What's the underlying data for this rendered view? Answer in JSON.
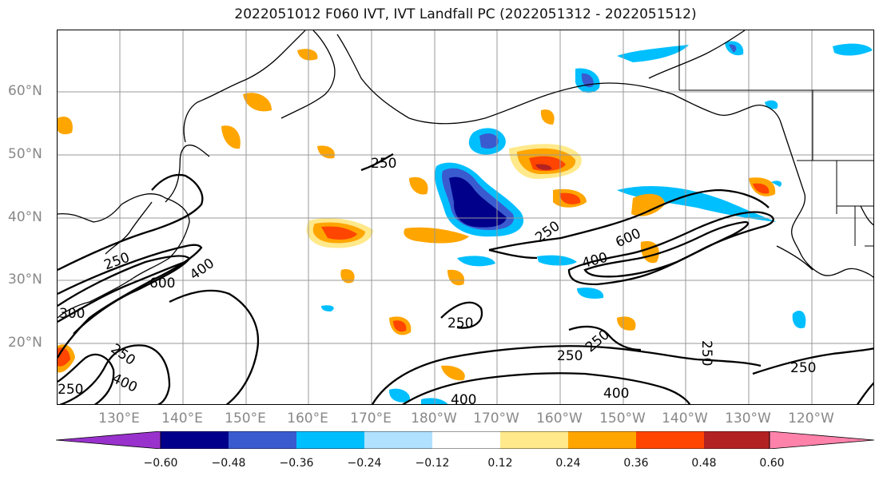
{
  "title": "2022051012 F060 IVT, IVT Landfall PC (2022051312 - 2022051512)",
  "lat_labels": [
    "60°N",
    "50°N",
    "40°N",
    "30°N",
    "20°N"
  ],
  "lon_labels": [
    "130°E",
    "140°E",
    "150°E",
    "160°E",
    "170°E",
    "180°W",
    "170°W",
    "160°W",
    "150°W",
    "140°W",
    "130°W",
    "120°W"
  ],
  "contour_labels": [
    "250",
    "250",
    "250",
    "400",
    "600",
    "250",
    "400",
    "600",
    "250",
    "250",
    "400",
    "400",
    "250",
    "250",
    "250",
    "300",
    "250",
    "400"
  ],
  "colorbar": {
    "ticks": [
      "−0.60",
      "−0.48",
      "−0.36",
      "−0.24",
      "−0.12",
      "0.12",
      "0.24",
      "0.36",
      "0.48",
      "0.60"
    ],
    "colors": [
      "#9932cc",
      "#00008b",
      "#3a5bcf",
      "#00bfff",
      "#b0e2ff",
      "#ffffff",
      "#ffe98a",
      "#ffa500",
      "#ff4500",
      "#b22222",
      "#ff82ab"
    ]
  }
}
